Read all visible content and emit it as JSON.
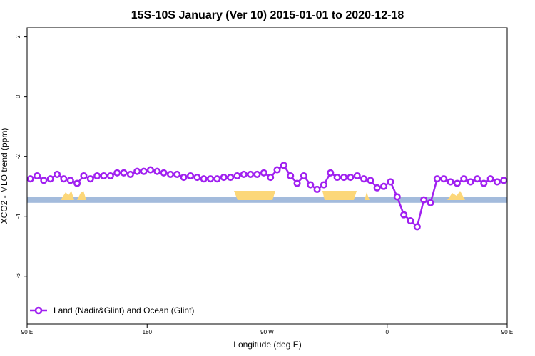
{
  "chart_data": {
    "type": "line",
    "title": "15S-10S January (Ver 10)   2015-01-01 to 2020-12-18",
    "xlabel": "Longitude (deg E)",
    "ylabel": "XCO2 - MLO trend (ppm)",
    "xlim": [
      90,
      450
    ],
    "ylim": [
      -7.6,
      2.3
    ],
    "x_ticks": [
      {
        "value": 90,
        "label": "90 E"
      },
      {
        "value": 180,
        "label": "180"
      },
      {
        "value": 270,
        "label": "90 W"
      },
      {
        "value": 360,
        "label": "0"
      },
      {
        "value": 450,
        "label": "90 E"
      }
    ],
    "y_ticks": [
      {
        "value": 2,
        "label": "2"
      },
      {
        "value": 0,
        "label": "0"
      },
      {
        "value": -2,
        "label": "-2"
      },
      {
        "value": -4,
        "label": "-4"
      },
      {
        "value": -6,
        "label": "-6"
      }
    ],
    "grid": false,
    "legend_position": "bottom-left",
    "series": [
      {
        "name": "Land (Nadir&Glint) and Ocean (Glint)",
        "color": "#a020f0",
        "marker": "open-circle",
        "x": [
          92.5,
          97.5,
          102.5,
          107.5,
          112.5,
          117.5,
          122.5,
          127.5,
          132.5,
          137.5,
          142.5,
          147.5,
          152.5,
          157.5,
          162.5,
          167.5,
          172.5,
          177.5,
          182.5,
          187.5,
          192.5,
          197.5,
          202.5,
          207.5,
          212.5,
          217.5,
          222.5,
          227.5,
          232.5,
          237.5,
          242.5,
          247.5,
          252.5,
          257.5,
          262.5,
          267.5,
          272.5,
          277.5,
          282.5,
          287.5,
          292.5,
          297.5,
          302.5,
          307.5,
          312.5,
          317.5,
          322.5,
          327.5,
          332.5,
          337.5,
          342.5,
          347.5,
          352.5,
          357.5,
          362.5,
          367.5,
          372.5,
          377.5,
          382.5,
          387.5,
          392.5,
          397.5,
          402.5,
          407.5,
          412.5,
          417.5,
          422.5,
          427.5,
          432.5,
          437.5,
          442.5,
          447.5
        ],
        "y": [
          -2.75,
          -2.65,
          -2.8,
          -2.75,
          -2.6,
          -2.75,
          -2.8,
          -2.9,
          -2.65,
          -2.75,
          -2.65,
          -2.65,
          -2.65,
          -2.55,
          -2.55,
          -2.6,
          -2.5,
          -2.5,
          -2.45,
          -2.5,
          -2.55,
          -2.6,
          -2.6,
          -2.7,
          -2.65,
          -2.7,
          -2.75,
          -2.75,
          -2.75,
          -2.7,
          -2.7,
          -2.65,
          -2.6,
          -2.6,
          -2.6,
          -2.55,
          -2.7,
          -2.45,
          -2.3,
          -2.65,
          -2.9,
          -2.65,
          -2.95,
          -3.1,
          -2.95,
          -2.55,
          -2.7,
          -2.7,
          -2.7,
          -2.65,
          -2.75,
          -2.8,
          -3.05,
          -3.0,
          -2.85,
          -3.35,
          -3.95,
          -4.15,
          -4.35,
          -3.45,
          -3.55,
          -2.75,
          -2.75,
          -2.85,
          -2.9,
          -2.75,
          -2.85,
          -2.75,
          -2.9,
          -2.75,
          -2.85,
          -2.8
        ]
      }
    ],
    "reference_band": {
      "y_min": -3.35,
      "y_max": -3.55,
      "color": "#a3bbdc"
    },
    "land_color": "#fcd779"
  }
}
